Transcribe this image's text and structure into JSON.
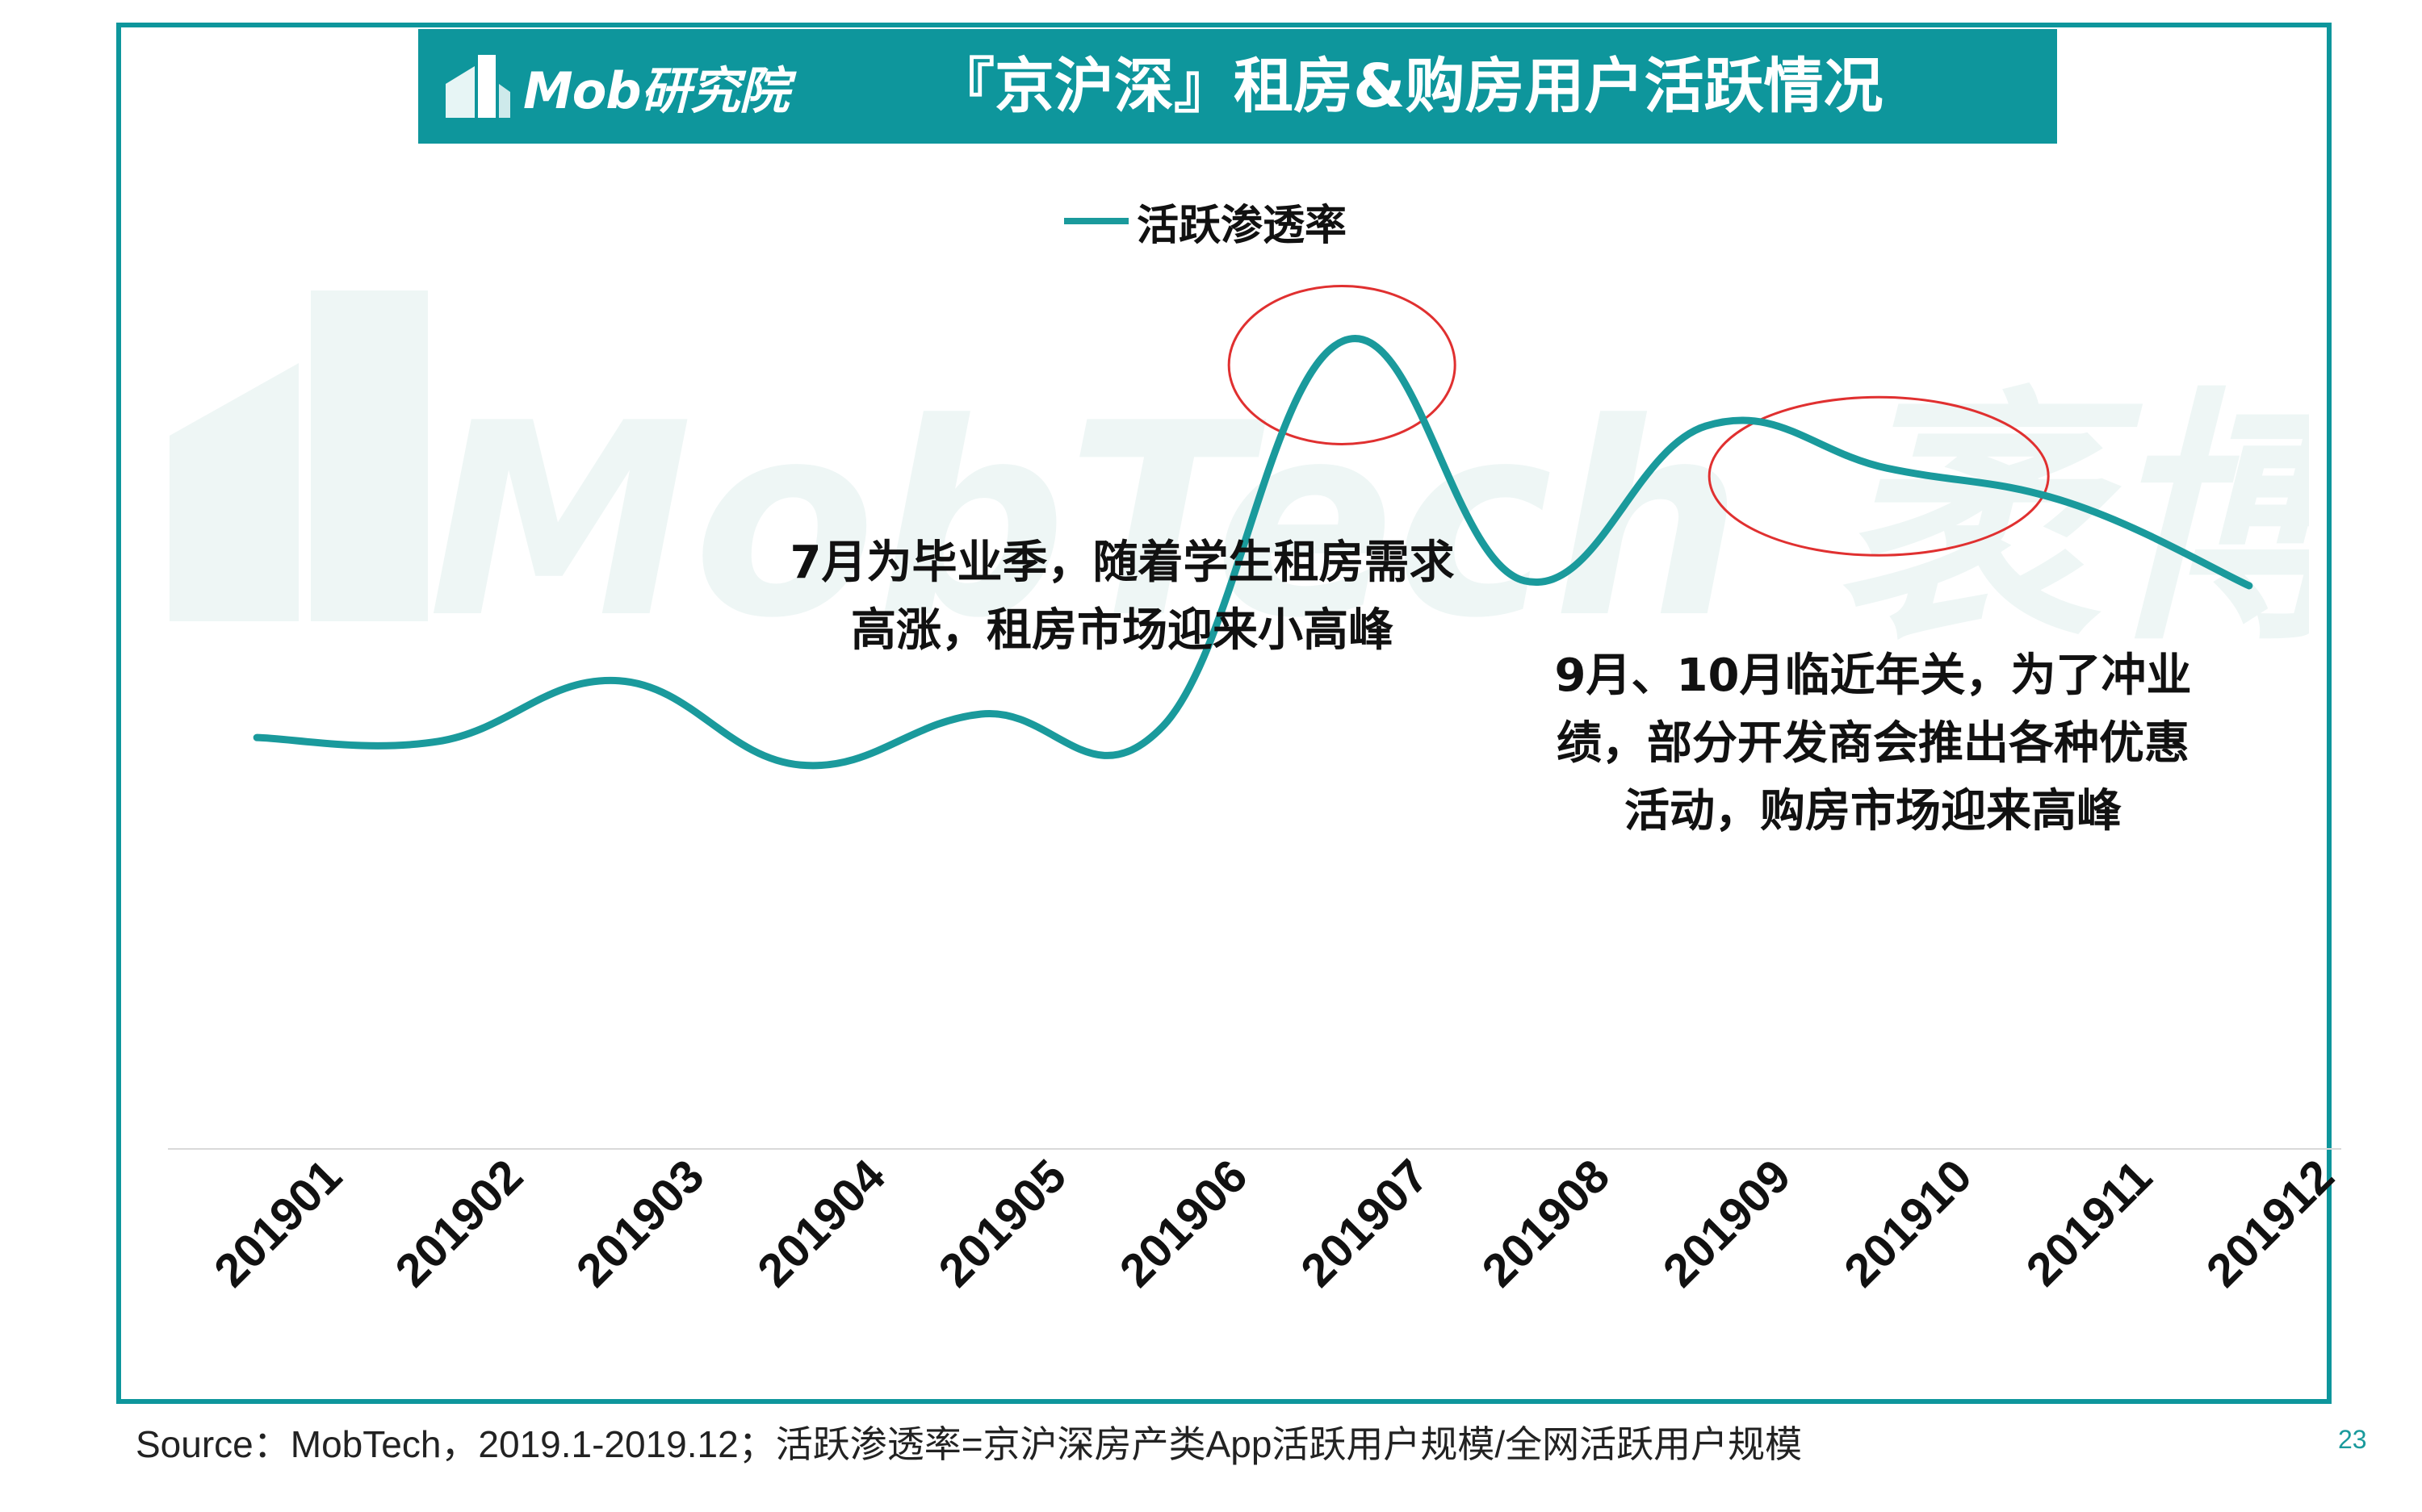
{
  "header": {
    "logo_text": "Mob研究院",
    "title": "『京沪深』租房&购房用户活跃情况"
  },
  "watermark": {
    "text": "MobTech 袤博"
  },
  "legend": {
    "label": "活跃渗透率"
  },
  "annotations": {
    "july": [
      "7月为毕业季，随着学生租房需求",
      "高涨，租房市场迎来小高峰"
    ],
    "sep_oct": [
      "9月、10月临近年关，为了冲业",
      "绩，部分开发商会推出各种优惠",
      "活动，购房市场迎来高峰"
    ]
  },
  "chart_data": {
    "type": "line",
    "categories": [
      "201901",
      "201902",
      "201903",
      "201904",
      "201905",
      "201906",
      "201907",
      "201908",
      "201909",
      "201910",
      "201911",
      "201912"
    ],
    "series": [
      {
        "name": "活跃渗透率",
        "values": [
          42.0,
          41.6,
          47.8,
          39.2,
          44.4,
          43.1,
          82.5,
          58.0,
          73.8,
          69.5,
          66.0,
          57.5
        ]
      }
    ],
    "ylim": [
      0,
      100
    ],
    "grid": false,
    "legend_position": "top-center",
    "highlight_circles_categories": [
      "201907",
      "201909-201911"
    ]
  },
  "colors": {
    "line": "#1a9a9c",
    "frame": "#0e969c",
    "highlight": "#e03030"
  },
  "source": "Source：MobTech，2019.1-2019.12；活跃渗透率=京沪深房产类App活跃用户规模/全网活跃用户规模",
  "page_number": "23"
}
